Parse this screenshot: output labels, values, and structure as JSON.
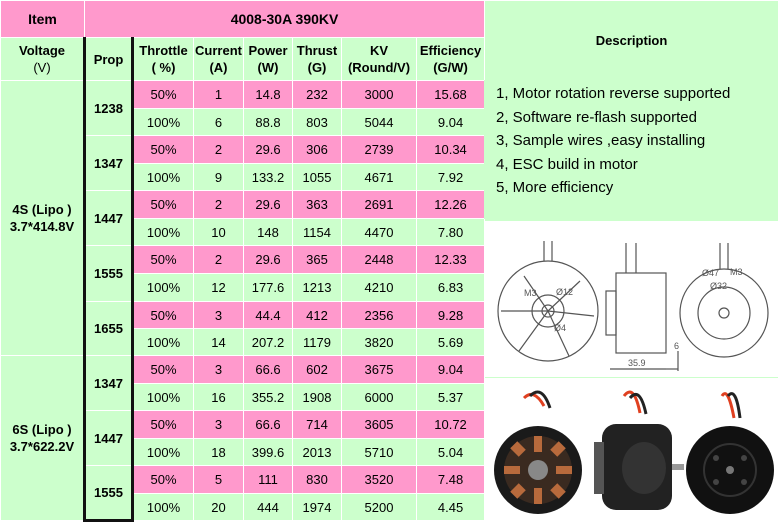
{
  "header": {
    "item": "Item",
    "model": "4008-30A 390KV",
    "description": "Description"
  },
  "columns": {
    "voltage": [
      "Voltage",
      "(V)"
    ],
    "prop": "Prop",
    "throttle": [
      "Throttle",
      "( %)"
    ],
    "current": [
      "Current",
      "(A)"
    ],
    "power": [
      "Power",
      "(W)"
    ],
    "thrust": [
      "Thrust",
      "(G)"
    ],
    "kv": [
      "KV",
      "(Round/V)"
    ],
    "efficiency": [
      "Efficiency",
      "(G/W)"
    ]
  },
  "voltages": [
    {
      "line1": "4S (Lipo )",
      "line2": "3.7*414.8V"
    },
    {
      "line1": "6S  (Lipo )",
      "line2": "3.7*622.2V"
    }
  ],
  "groups": [
    {
      "voltage": 0,
      "prop": "1238",
      "rows": [
        {
          "throttle": "50%",
          "current": "1",
          "power": "14.8",
          "thrust": "232",
          "kv": "3000",
          "eff": "15.68"
        },
        {
          "throttle": "100%",
          "current": "6",
          "power": "88.8",
          "thrust": "803",
          "kv": "5044",
          "eff": "9.04"
        }
      ]
    },
    {
      "voltage": 0,
      "prop": "1347",
      "rows": [
        {
          "throttle": "50%",
          "current": "2",
          "power": "29.6",
          "thrust": "306",
          "kv": "2739",
          "eff": "10.34"
        },
        {
          "throttle": "100%",
          "current": "9",
          "power": "133.2",
          "thrust": "1055",
          "kv": "4671",
          "eff": "7.92"
        }
      ]
    },
    {
      "voltage": 0,
      "prop": "1447",
      "rows": [
        {
          "throttle": "50%",
          "current": "2",
          "power": "29.6",
          "thrust": "363",
          "kv": "2691",
          "eff": "12.26"
        },
        {
          "throttle": "100%",
          "current": "10",
          "power": "148",
          "thrust": "1154",
          "kv": "4470",
          "eff": "7.80"
        }
      ]
    },
    {
      "voltage": 0,
      "prop": "1555",
      "rows": [
        {
          "throttle": "50%",
          "current": "2",
          "power": "29.6",
          "thrust": "365",
          "kv": "2448",
          "eff": "12.33"
        },
        {
          "throttle": "100%",
          "current": "12",
          "power": "177.6",
          "thrust": "1213",
          "kv": "4210",
          "eff": "6.83"
        }
      ]
    },
    {
      "voltage": 0,
      "prop": "1655",
      "rows": [
        {
          "throttle": "50%",
          "current": "3",
          "power": "44.4",
          "thrust": "412",
          "kv": "2356",
          "eff": "9.28"
        },
        {
          "throttle": "100%",
          "current": "14",
          "power": "207.2",
          "thrust": "1179",
          "kv": "3820",
          "eff": "5.69"
        }
      ]
    },
    {
      "voltage": 1,
      "prop": "1347",
      "rows": [
        {
          "throttle": "50%",
          "current": "3",
          "power": "66.6",
          "thrust": "602",
          "kv": "3675",
          "eff": "9.04"
        },
        {
          "throttle": "100%",
          "current": "16",
          "power": "355.2",
          "thrust": "1908",
          "kv": "6000",
          "eff": "5.37"
        }
      ]
    },
    {
      "voltage": 1,
      "prop": "1447",
      "rows": [
        {
          "throttle": "50%",
          "current": "3",
          "power": "66.6",
          "thrust": "714",
          "kv": "3605",
          "eff": "10.72"
        },
        {
          "throttle": "100%",
          "current": "18",
          "power": "399.6",
          "thrust": "2013",
          "kv": "5710",
          "eff": "5.04"
        }
      ]
    },
    {
      "voltage": 1,
      "prop": "1555",
      "rows": [
        {
          "throttle": "50%",
          "current": "5",
          "power": "111",
          "thrust": "830",
          "kv": "3520",
          "eff": "7.48"
        },
        {
          "throttle": "100%",
          "current": "20",
          "power": "444",
          "thrust": "1974",
          "kv": "5200",
          "eff": "4.45"
        }
      ]
    }
  ],
  "description_lines": [
    "1, Motor rotation reverse supported",
    "2, Software re-flash supported",
    "3, Sample wires ,easy installing",
    "4, ESC build in motor",
    "5, More efficiency"
  ],
  "drawing": {
    "labels": [
      "M3",
      "Ø12",
      "Ø4",
      "Ø47",
      "M3",
      "Ø32",
      "35.9",
      "6"
    ]
  },
  "colors": {
    "green": "#ccffcc",
    "pink": "#ff99cc",
    "motor": "#1a1a1a",
    "coil": "#b86a3c"
  }
}
